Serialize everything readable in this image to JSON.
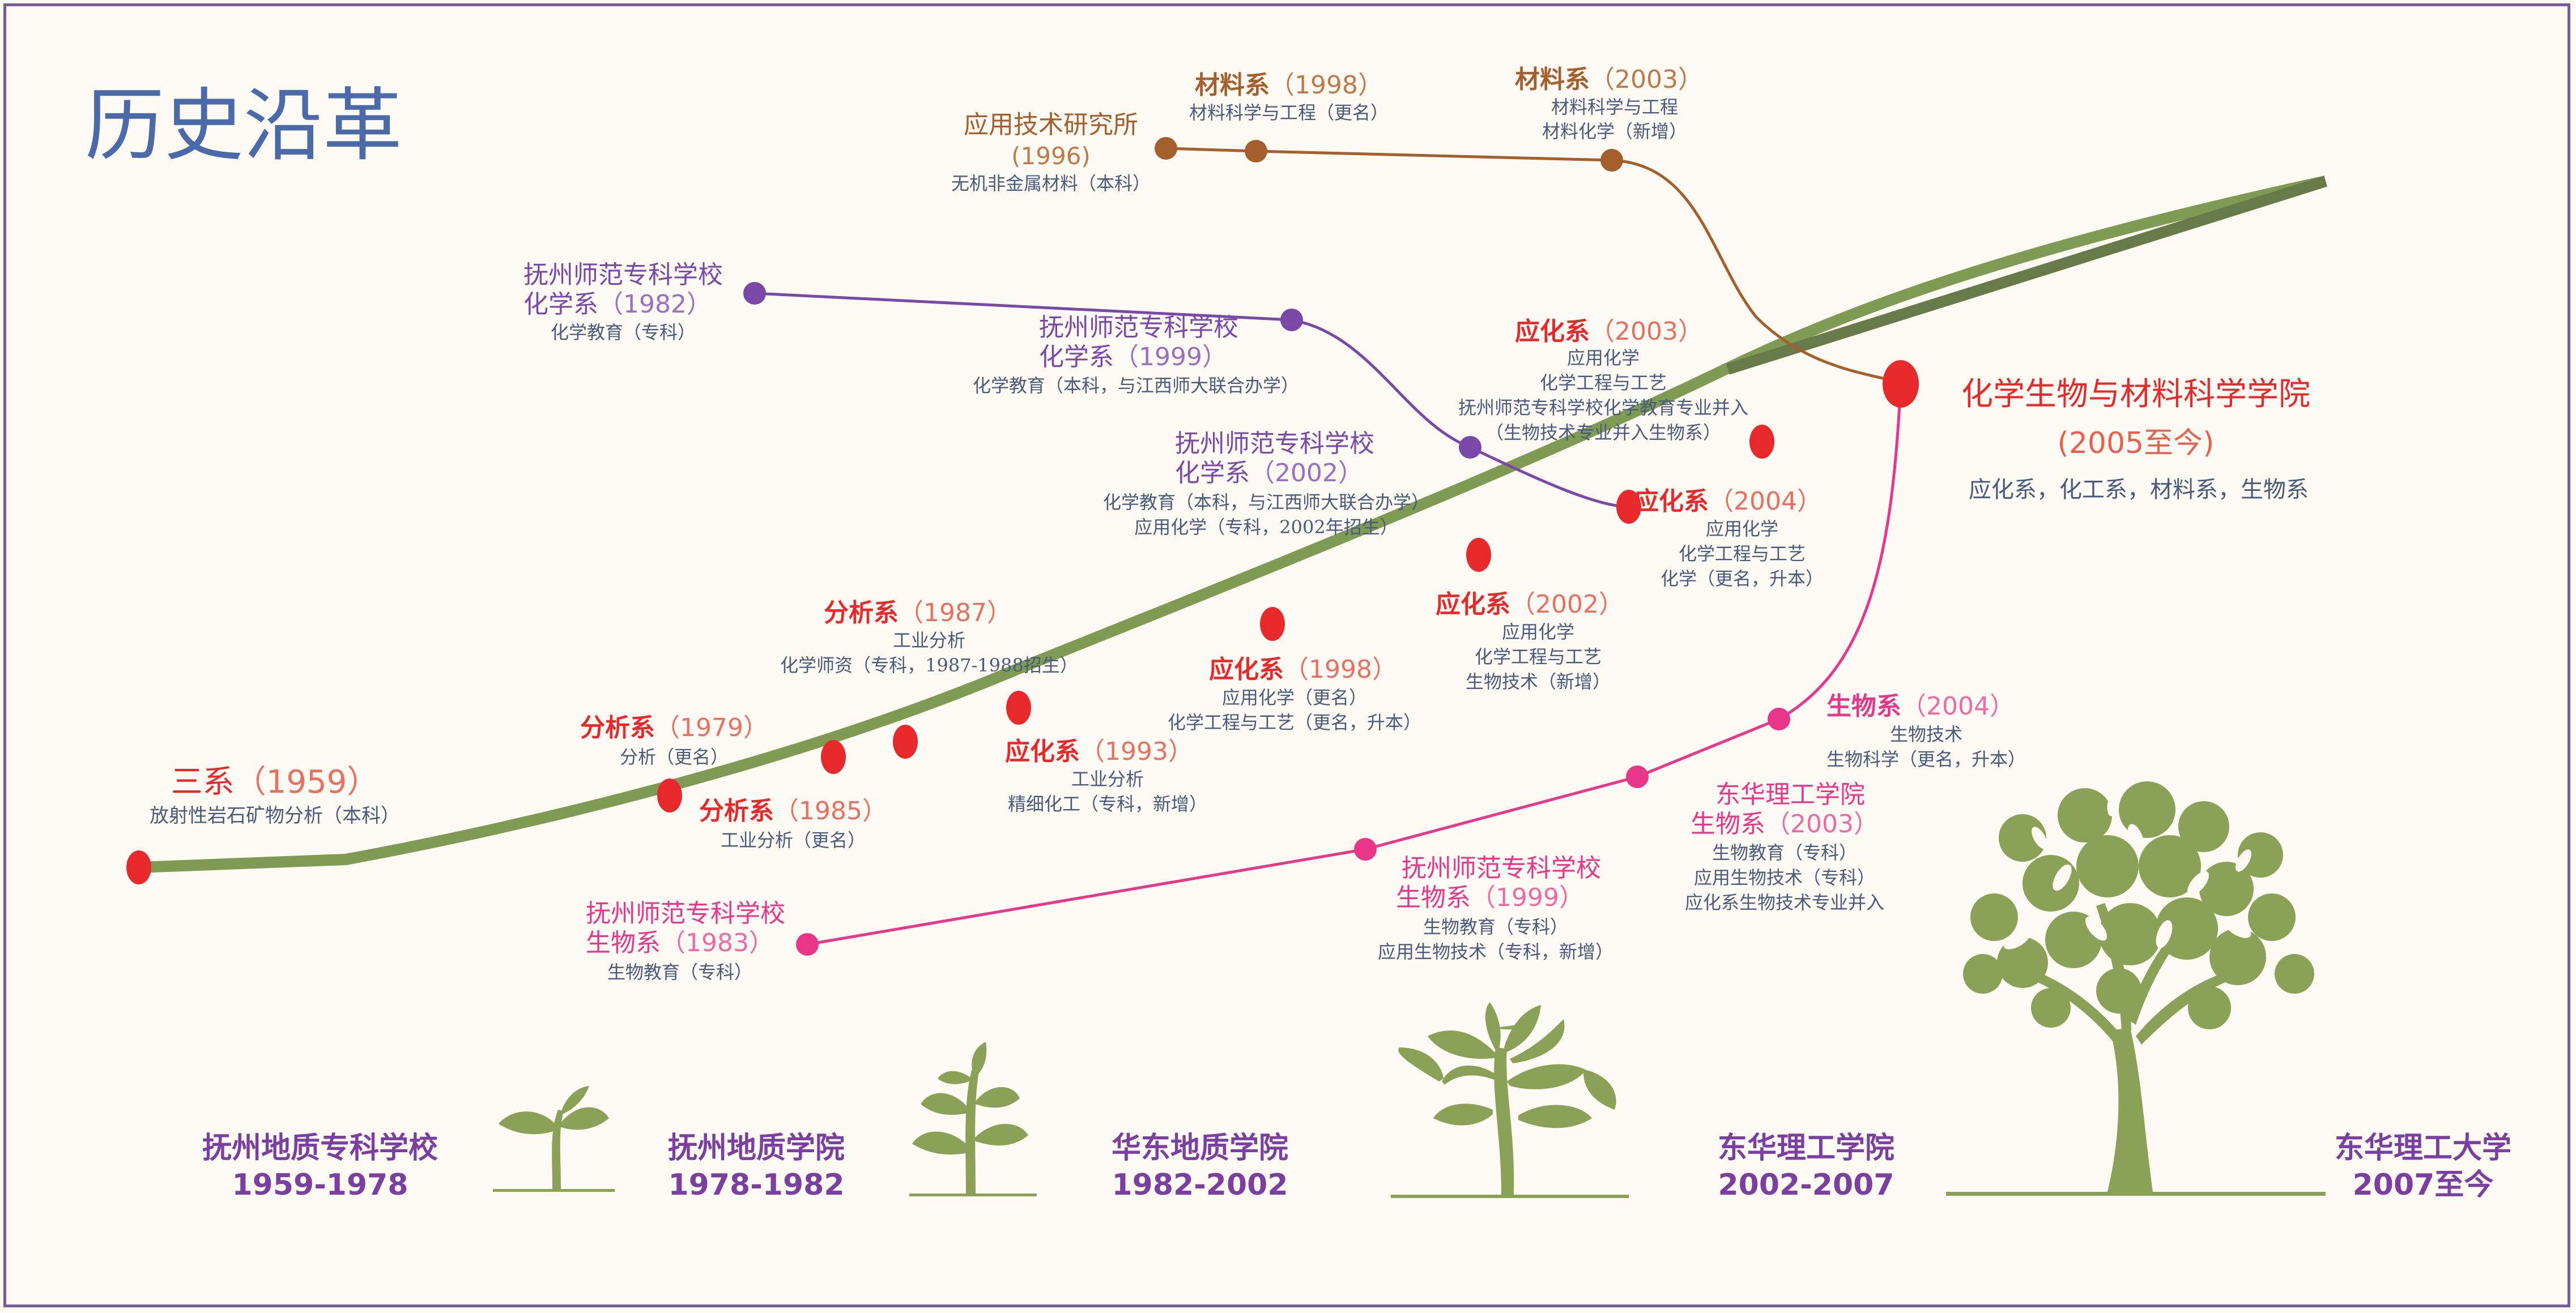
{
  "title": "历史沿革",
  "colors": {
    "main_line": "#7f9a52",
    "main_line_dark": "#687a4a",
    "red": "#e8292b",
    "brown": "#a45f2d",
    "purple": "#7a49a8",
    "pink": "#e8368a",
    "desc": "#4a5a7a",
    "era": "#7a3fa0",
    "title": "#4a6aaa",
    "college": "#e8292b",
    "tree": "#8aa157"
  },
  "main_line_events": [
    {
      "name": "三系",
      "year": "（1959）",
      "lines": [
        "放射性岩石矿物分析（本科）"
      ]
    },
    {
      "name": "分析系",
      "year": "（1979）",
      "lines": [
        "分析（更名）"
      ]
    },
    {
      "name": "分析系",
      "year": "（1985）",
      "lines": [
        "工业分析（更名）"
      ]
    },
    {
      "name": "分析系",
      "year": "（1987）",
      "lines": [
        "工业分析",
        "化学师资（专科，1987-1988招生）"
      ]
    },
    {
      "name": "应化系",
      "year": "（1993）",
      "lines": [
        "工业分析",
        "精细化工（专科，新增）"
      ]
    },
    {
      "name": "应化系",
      "year": "（1998）",
      "lines": [
        "应用化学（更名）",
        "化学工程与工艺（更名，升本）"
      ]
    },
    {
      "name": "应化系",
      "year": "（2002）",
      "lines": [
        "应用化学",
        "化学工程与工艺",
        "生物技术（新增）"
      ]
    },
    {
      "name": "应化系",
      "year": "（2004）",
      "lines": [
        "应用化学",
        "化学工程与工艺",
        "化学（更名，升本）"
      ]
    },
    {
      "name": "应化系",
      "year": "（2003）",
      "lines": [
        "应用化学",
        "化学工程与工艺",
        "抚州师范专科学校化学教育专业并入",
        "（生物技术专业并入生物系）"
      ]
    }
  ],
  "college": {
    "name": "化学生物与材料科学学院",
    "year": "(2005至今)",
    "departments": "应化系，化工系，材料系，生物系"
  },
  "brown_branch": [
    {
      "name": "应用技术研究所",
      "year": "(1996)",
      "lines": [
        "无机非金属材料（本科）"
      ]
    },
    {
      "name": "材料系",
      "year": "（1998）",
      "lines": [
        "材料科学与工程（更名）"
      ]
    },
    {
      "name": "材料系",
      "year": "（2003）",
      "lines": [
        "材料科学与工程",
        "材料化学（新增）"
      ]
    }
  ],
  "purple_branch": [
    {
      "school": "抚州师范专科学校",
      "name": "化学系",
      "year": "（1982）",
      "lines": [
        "化学教育（专科）"
      ]
    },
    {
      "school": "抚州师范专科学校",
      "name": "化学系",
      "year": "（1999）",
      "lines": [
        "化学教育（本科，与江西师大联合办学）"
      ]
    },
    {
      "school": "抚州师范专科学校",
      "name": "化学系",
      "year": "（2002）",
      "lines": [
        "化学教育（本科，与江西师大联合办学）",
        "应用化学（专科，2002年招生）"
      ]
    }
  ],
  "pink_branch": [
    {
      "school": "抚州师范专科学校",
      "name": "生物系",
      "year": "（1983）",
      "lines": [
        "生物教育（专科）"
      ]
    },
    {
      "school": "抚州师范专科学校",
      "name": "生物系",
      "year": "（1999）",
      "lines": [
        "生物教育（专科）",
        "应用生物技术（专科，新增）"
      ]
    },
    {
      "school": "东华理工学院",
      "name": "生物系",
      "year": "（2003）",
      "lines": [
        "生物教育（专科）",
        "应用生物技术（专科）",
        "应化系生物技术专业并入"
      ]
    },
    {
      "name": "生物系",
      "year": "（2004）",
      "lines": [
        "生物技术",
        "生物科学（更名，升本）"
      ]
    }
  ],
  "eras": [
    {
      "name": "抚州地质专科学校",
      "years": "1959-1978"
    },
    {
      "name": "抚州地质学院",
      "years": "1978-1982"
    },
    {
      "name": "华东地质学院",
      "years": "1982-2002"
    },
    {
      "name": "东华理工学院",
      "years": "2002-2007"
    },
    {
      "name": "东华理工大学",
      "years": "2007至今"
    }
  ]
}
